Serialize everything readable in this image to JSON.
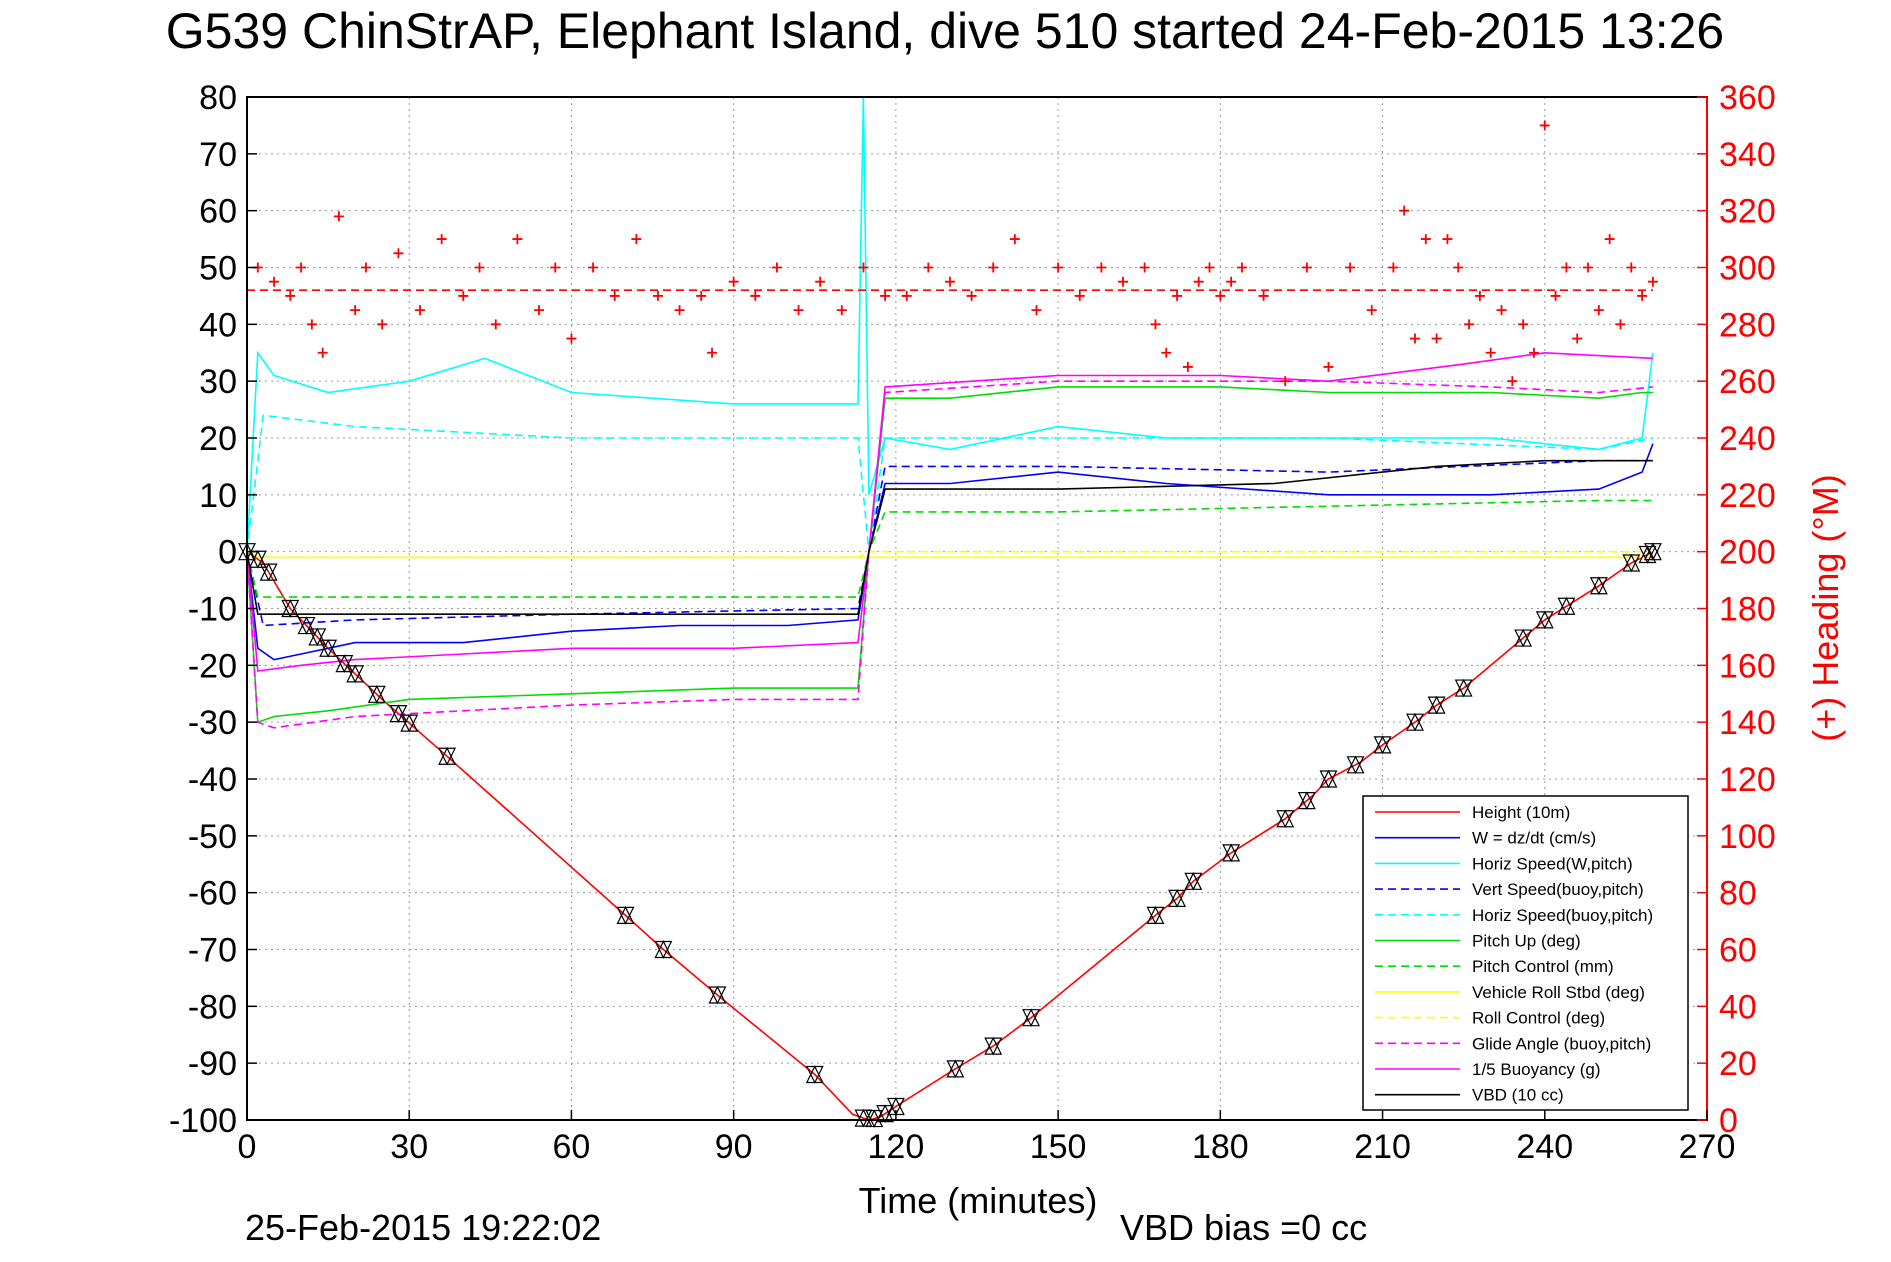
{
  "chart_data": {
    "type": "line",
    "title": "G539 ChinStrAP, Elephant Island, dive 510 started 24-Feb-2015 13:26",
    "xlabel": "Time (minutes)",
    "ylabel": "",
    "y2label": "(+) Heading (°M)",
    "footer_date": "25-Feb-2015 19:22:02",
    "footer_note": "VBD bias =0 cc",
    "xlim": [
      0,
      270
    ],
    "ylim": [
      -100,
      80
    ],
    "y2lim": [
      0,
      360
    ],
    "xticks": [
      0,
      30,
      60,
      90,
      120,
      150,
      180,
      210,
      240,
      270
    ],
    "yticks": [
      80,
      70,
      60,
      50,
      40,
      30,
      20,
      10,
      0,
      -10,
      -20,
      -30,
      -40,
      -50,
      -60,
      -70,
      -80,
      -90,
      -100
    ],
    "y2ticks": [
      360,
      340,
      320,
      300,
      280,
      260,
      240,
      220,
      200,
      180,
      160,
      140,
      120,
      100,
      80,
      60,
      40,
      20,
      0
    ],
    "grid": true,
    "legend_position": "bottom-right",
    "colors": {
      "axis": "#000000",
      "right_axis": "#ff0000",
      "grid": "#9a9a9a"
    },
    "series": [
      {
        "name": "Height (10m)",
        "color": "#ff0000",
        "dash": "solid",
        "x": [
          0,
          3,
          8,
          15,
          25,
          37,
          70,
          77,
          87,
          105,
          112,
          115,
          117,
          121,
          131,
          138,
          145,
          168,
          172,
          175,
          182,
          192,
          197,
          200,
          206,
          210,
          216,
          220,
          225,
          240,
          250,
          256,
          260
        ],
        "y": [
          0,
          -2,
          -10,
          -17,
          -26,
          -36,
          -64,
          -70,
          -78,
          -92,
          -99,
          -100,
          -99.5,
          -97,
          -91,
          -87,
          -82,
          -64,
          -61,
          -58,
          -53,
          -47,
          -43,
          -40,
          -37,
          -34,
          -30,
          -27,
          -24,
          -12,
          -6,
          -2,
          0
        ]
      },
      {
        "name": "W = dz/dt (cm/s)",
        "color": "#0000ff",
        "dash": "solid",
        "x": [
          0,
          2,
          5,
          10,
          20,
          30,
          40,
          60,
          80,
          100,
          113,
          115,
          118,
          130,
          150,
          170,
          200,
          230,
          250,
          258,
          260
        ],
        "y": [
          0,
          -17,
          -19,
          -18,
          -16,
          -16,
          -16,
          -14,
          -13,
          -13,
          -12,
          0,
          12,
          12,
          14,
          12,
          10,
          10,
          11,
          14,
          19
        ]
      },
      {
        "name": "Horiz Speed(W,pitch)",
        "color": "#00ffff",
        "dash": "solid",
        "x": [
          0,
          2,
          5,
          15,
          30,
          44,
          60,
          90,
          113,
          114,
          115,
          118,
          130,
          150,
          170,
          200,
          230,
          250,
          258,
          260
        ],
        "y": [
          0,
          35,
          31,
          28,
          30,
          34,
          28,
          26,
          26,
          80,
          10,
          20,
          18,
          22,
          20,
          20,
          20,
          18,
          20,
          35
        ]
      },
      {
        "name": "Vert Speed(buoy,pitch)",
        "color": "#0000ff",
        "dash": "dashed",
        "x": [
          0,
          3,
          20,
          60,
          113,
          115,
          118,
          150,
          200,
          250,
          260
        ],
        "y": [
          0,
          -13,
          -12,
          -11,
          -10,
          0,
          15,
          15,
          14,
          16,
          16
        ]
      },
      {
        "name": "Horiz Speed(buoy,pitch)",
        "color": "#00ffff",
        "dash": "dashed",
        "x": [
          0,
          3,
          20,
          60,
          113,
          115,
          118,
          150,
          200,
          250,
          260
        ],
        "y": [
          0,
          24,
          22,
          20,
          20,
          0,
          20,
          20,
          20,
          18,
          20
        ]
      },
      {
        "name": "Pitch Up (deg)",
        "color": "#00dd00",
        "dash": "solid",
        "x": [
          0,
          2,
          5,
          15,
          30,
          60,
          90,
          113,
          115,
          118,
          130,
          150,
          180,
          200,
          230,
          250,
          258,
          260
        ],
        "y": [
          0,
          -30,
          -29,
          -28,
          -26,
          -25,
          -24,
          -24,
          0,
          27,
          27,
          29,
          29,
          28,
          28,
          27,
          28,
          28
        ]
      },
      {
        "name": "Pitch Control (mm)",
        "color": "#00dd00",
        "dash": "dashed",
        "x": [
          0,
          2,
          60,
          113,
          115,
          118,
          150,
          200,
          250,
          260
        ],
        "y": [
          0,
          -8,
          -8,
          -8,
          0,
          7,
          7,
          8,
          9,
          9
        ]
      },
      {
        "name": "Vehicle Roll Stbd (deg)",
        "color": "#ffff00",
        "dash": "solid",
        "x": [
          0,
          2,
          10,
          30,
          60,
          90,
          115,
          150,
          200,
          230,
          250,
          258,
          260
        ],
        "y": [
          0,
          -1,
          -1,
          -1,
          -1,
          -1,
          -1,
          -1,
          -1,
          -1,
          -1,
          -1,
          -1
        ]
      },
      {
        "name": "Roll Control (deg)",
        "color": "#ffff00",
        "dash": "dashed",
        "x": [
          0,
          2,
          60,
          113,
          115,
          118,
          150,
          200,
          250,
          260
        ],
        "y": [
          0,
          -1,
          -1,
          -1,
          0,
          0,
          0,
          0,
          0,
          0
        ]
      },
      {
        "name": "Glide Angle (buoy,pitch)",
        "color": "#ff00ff",
        "dash": "dashed",
        "x": [
          0,
          2,
          5,
          20,
          40,
          60,
          90,
          113,
          115,
          118,
          150,
          200,
          230,
          250,
          260
        ],
        "y": [
          0,
          -30,
          -31,
          -29,
          -28,
          -27,
          -26,
          -26,
          0,
          28,
          30,
          30,
          29,
          28,
          29
        ]
      },
      {
        "name": "1/5 Buoyancy (g)",
        "color": "#ff00ff",
        "dash": "solid",
        "x": [
          0,
          2,
          10,
          20,
          40,
          60,
          90,
          113,
          115,
          118,
          150,
          180,
          200,
          225,
          240,
          260
        ],
        "y": [
          0,
          -21,
          -20,
          -19,
          -18,
          -17,
          -17,
          -16,
          0,
          29,
          31,
          31,
          30,
          33,
          35,
          34
        ]
      },
      {
        "name": "VBD (10 cc)",
        "color": "#000000",
        "dash": "solid",
        "x": [
          0,
          2,
          60,
          113,
          115,
          118,
          150,
          190,
          220,
          240,
          260
        ],
        "y": [
          0,
          -11,
          -11,
          -11,
          0,
          11,
          11,
          12,
          15,
          16,
          16
        ]
      },
      {
        "name": "",
        "color": "#ff0000",
        "dash": "dashed",
        "axis": "right",
        "x": [
          0,
          260
        ],
        "y": [
          292,
          292
        ]
      }
    ],
    "heading_points": {
      "color": "#ff0000",
      "marker": "+",
      "axis": "right",
      "x": [
        2,
        5,
        8,
        10,
        12,
        14,
        17,
        20,
        22,
        25,
        28,
        32,
        36,
        40,
        43,
        46,
        50,
        54,
        57,
        60,
        64,
        68,
        72,
        76,
        80,
        84,
        86,
        90,
        94,
        98,
        102,
        106,
        110,
        114,
        118,
        122,
        126,
        130,
        134,
        138,
        142,
        146,
        150,
        154,
        158,
        162,
        166,
        168,
        170,
        172,
        174,
        176,
        178,
        180,
        182,
        184,
        188,
        192,
        196,
        200,
        204,
        208,
        212,
        214,
        216,
        218,
        220,
        222,
        224,
        226,
        228,
        230,
        232,
        234,
        236,
        238,
        240,
        242,
        244,
        246,
        248,
        250,
        252,
        254,
        256,
        258,
        260
      ],
      "y": [
        300,
        295,
        290,
        300,
        280,
        270,
        318,
        285,
        300,
        280,
        305,
        285,
        310,
        290,
        300,
        280,
        310,
        285,
        300,
        275,
        300,
        290,
        310,
        290,
        285,
        290,
        270,
        295,
        290,
        300,
        285,
        295,
        285,
        300,
        290,
        290,
        300,
        295,
        290,
        300,
        310,
        285,
        300,
        290,
        300,
        295,
        300,
        280,
        270,
        290,
        265,
        295,
        300,
        290,
        295,
        300,
        290,
        260,
        300,
        265,
        300,
        285,
        300,
        320,
        275,
        310,
        275,
        310,
        300,
        280,
        290,
        270,
        285,
        260,
        280,
        270,
        350,
        290,
        300,
        275,
        300,
        285,
        310,
        280,
        300,
        290,
        295
      ]
    },
    "triangle_markers_x": [
      0,
      2,
      4,
      8,
      11,
      13,
      15,
      18,
      20,
      24,
      28,
      30,
      37,
      70,
      77,
      87,
      105,
      114,
      116,
      118,
      120,
      131,
      138,
      145,
      168,
      172,
      175,
      182,
      192,
      196,
      200,
      205,
      210,
      216,
      220,
      225,
      236,
      240,
      244,
      250,
      256,
      259,
      260
    ]
  }
}
